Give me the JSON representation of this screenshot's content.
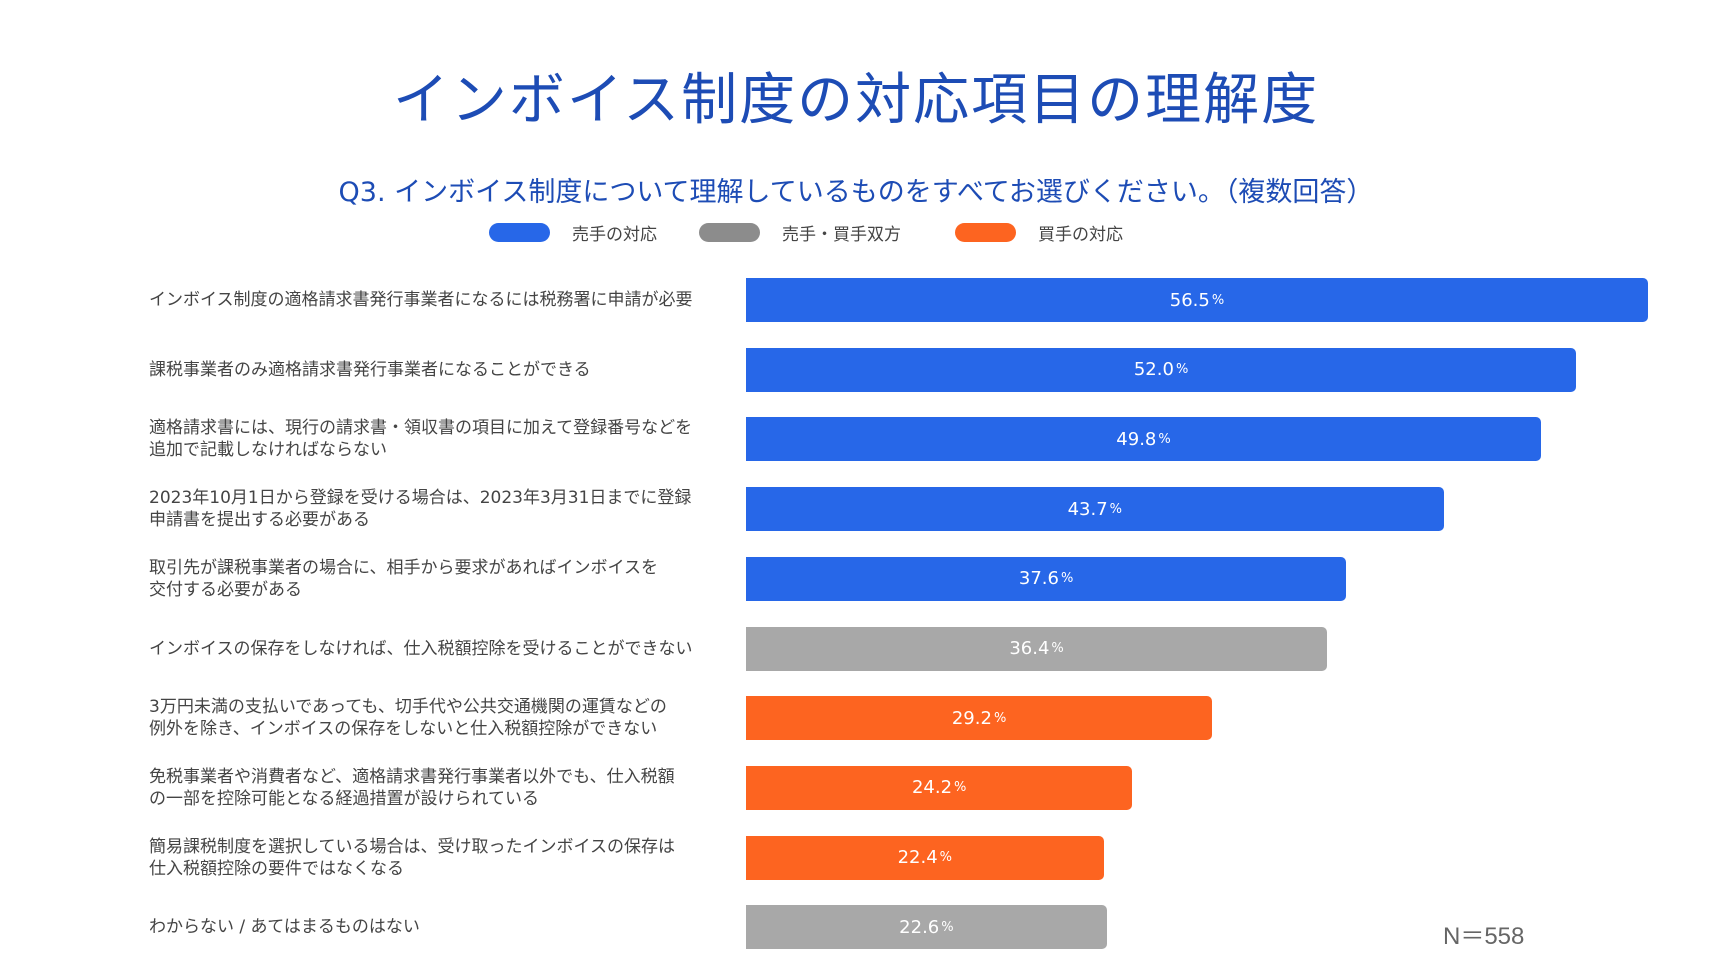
{
  "title": "インボイス制度の対応項目の理解度",
  "subtitle": "Q3. インボイス制度について理解しているものをすべてお選びください。（複数回答）",
  "colors": {
    "seller": "#2767e8",
    "both": "#a8a8a8",
    "buyer": "#fd6420"
  },
  "legend": [
    {
      "label": "売手の対応",
      "key": "seller"
    },
    {
      "label": "売手・買手双方",
      "key": "both"
    },
    {
      "label": "買手の対応",
      "key": "buyer"
    }
  ],
  "sample_size": "N＝558",
  "chart_data": {
    "type": "bar",
    "orientation": "horizontal",
    "unit": "%",
    "xlim": [
      0,
      56.5
    ],
    "categories": [
      "インボイス制度の適格請求書発行事業者になるには税務署に申請が必要",
      "課税事業者のみ適格請求書発行事業者になることができる",
      "適格請求書には、現行の請求書・領収書の項目に加えて登録番号などを\n追加で記載しなければならない",
      "2023年10月1日から登録を受ける場合は、2023年3月31日までに登録\n申請書を提出する必要がある",
      "取引先が課税事業者の場合に、相手から要求があればインボイスを\n交付する必要がある",
      "インボイスの保存をしなければ、仕入税額控除を受けることができない",
      "3万円未満の支払いであっても、切手代や公共交通機関の運賃などの\n例外を除き、インボイスの保存をしないと仕入税額控除ができない",
      "免税事業者や消費者など、適格請求書発行事業者以外でも、仕入税額\nの一部を控除可能となる経過措置が設けられている",
      "簡易課税制度を選択している場合は、受け取ったインボイスの保存は\n仕入税額控除の要件ではなくなる",
      "わからない / あてはまるものはない"
    ],
    "values": [
      56.5,
      52.0,
      49.8,
      43.7,
      37.6,
      36.4,
      29.2,
      24.2,
      22.4,
      22.6
    ],
    "value_labels": [
      "56.5",
      "52.0",
      "49.8",
      "43.7",
      "37.6",
      "36.4",
      "29.2",
      "24.2",
      "22.4",
      "22.6"
    ],
    "groups": [
      "seller",
      "seller",
      "seller",
      "seller",
      "seller",
      "both",
      "buyer",
      "buyer",
      "buyer",
      "both"
    ],
    "pct_sign": "%"
  }
}
